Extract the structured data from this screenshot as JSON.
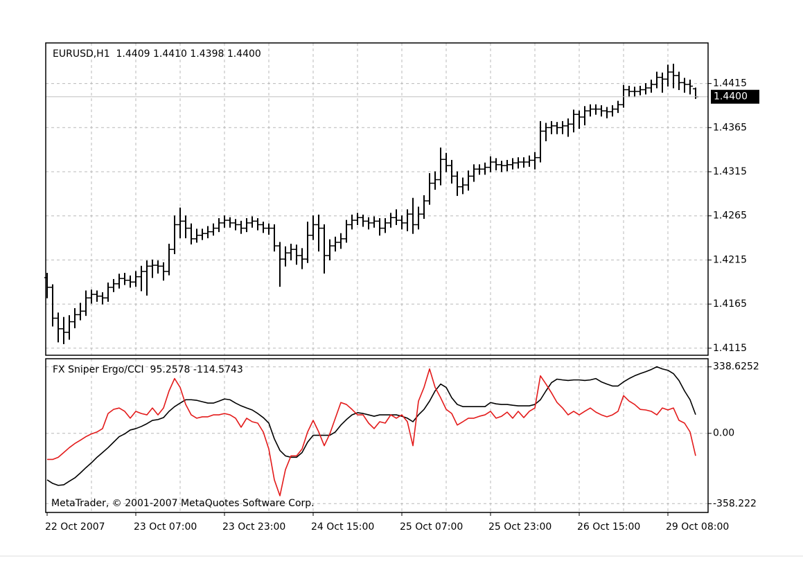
{
  "chart_data": [
    {
      "type": "ohlc",
      "title": "EURUSD,H1  1.4409 1.4410 1.4398 1.4400",
      "open": [
        1.4195,
        1.4184,
        1.4149,
        1.4137,
        1.4133,
        1.4145,
        1.4153,
        1.4157,
        1.4172,
        1.4176,
        1.4174,
        1.4172,
        1.4184,
        1.4188,
        1.4194,
        1.4192,
        1.419,
        1.4196,
        1.4202,
        1.4208,
        1.4209,
        1.4208,
        1.4202,
        1.4227,
        1.4255,
        1.4259,
        1.4251,
        1.4239,
        1.4243,
        1.4245,
        1.4247,
        1.4251,
        1.4257,
        1.426,
        1.4257,
        1.4255,
        1.4251,
        1.4257,
        1.4259,
        1.4255,
        1.4251,
        1.4251,
        1.4231,
        1.4216,
        1.4223,
        1.4227,
        1.422,
        1.4216,
        1.4243,
        1.4255,
        1.4251,
        1.422,
        1.4231,
        1.4235,
        1.4239,
        1.4255,
        1.426,
        1.4263,
        1.4259,
        1.4257,
        1.4259,
        1.4251,
        1.4257,
        1.4263,
        1.426,
        1.4257,
        1.4267,
        1.4255,
        1.4267,
        1.4282,
        1.4302,
        1.4306,
        1.4329,
        1.4322,
        1.431,
        1.4298,
        1.43,
        1.431,
        1.4318,
        1.4318,
        1.432,
        1.4326,
        1.4323,
        1.4322,
        1.4323,
        1.4325,
        1.4326,
        1.4326,
        1.4328,
        1.4331,
        1.4361,
        1.4365,
        1.4367,
        1.4365,
        1.4367,
        1.4369,
        1.438,
        1.4377,
        1.4384,
        1.4386,
        1.4386,
        1.4384,
        1.4383,
        1.4386,
        1.4391,
        1.4408,
        1.4406,
        1.4406,
        1.4408,
        1.441,
        1.4414,
        1.4422,
        1.442,
        1.4428,
        1.4424,
        1.4416,
        1.4414,
        1.4409
      ],
      "high": [
        1.42,
        1.4187,
        1.4155,
        1.415,
        1.4152,
        1.416,
        1.4166,
        1.418,
        1.4181,
        1.418,
        1.4178,
        1.4189,
        1.4193,
        1.4199,
        1.42,
        1.4197,
        1.4202,
        1.4208,
        1.4214,
        1.4215,
        1.4214,
        1.4212,
        1.4233,
        1.4265,
        1.4274,
        1.4265,
        1.4256,
        1.425,
        1.425,
        1.4253,
        1.4256,
        1.4262,
        1.4265,
        1.4263,
        1.4261,
        1.4259,
        1.4262,
        1.4264,
        1.4262,
        1.4258,
        1.4256,
        1.4255,
        1.4235,
        1.423,
        1.4233,
        1.4232,
        1.4228,
        1.4258,
        1.4265,
        1.4266,
        1.4255,
        1.4238,
        1.4241,
        1.4245,
        1.426,
        1.4266,
        1.4268,
        1.4266,
        1.4263,
        1.4264,
        1.4262,
        1.4262,
        1.4268,
        1.4272,
        1.4265,
        1.4272,
        1.4285,
        1.4275,
        1.4288,
        1.4313,
        1.4315,
        1.4342,
        1.4336,
        1.4328,
        1.4315,
        1.4308,
        1.4316,
        1.4323,
        1.4323,
        1.4325,
        1.4332,
        1.433,
        1.4327,
        1.4328,
        1.433,
        1.4331,
        1.4331,
        1.4333,
        1.4337,
        1.4372,
        1.437,
        1.4372,
        1.4371,
        1.4372,
        1.4375,
        1.4385,
        1.4384,
        1.4389,
        1.4391,
        1.4391,
        1.439,
        1.4388,
        1.439,
        1.4395,
        1.4413,
        1.4412,
        1.4411,
        1.4412,
        1.4415,
        1.4419,
        1.4428,
        1.4427,
        1.4436,
        1.4437,
        1.4428,
        1.4421,
        1.4419,
        1.441
      ],
      "low": [
        1.4172,
        1.414,
        1.4122,
        1.412,
        1.4125,
        1.4138,
        1.4147,
        1.4152,
        1.4166,
        1.4168,
        1.4165,
        1.4168,
        1.4179,
        1.4183,
        1.4187,
        1.4184,
        1.4185,
        1.418,
        1.4175,
        1.4195,
        1.42,
        1.4192,
        1.4198,
        1.4222,
        1.424,
        1.424,
        1.4233,
        1.4235,
        1.4238,
        1.424,
        1.4243,
        1.4247,
        1.4252,
        1.4252,
        1.4249,
        1.4245,
        1.4247,
        1.4252,
        1.4249,
        1.4246,
        1.4244,
        1.4225,
        1.4185,
        1.4208,
        1.4215,
        1.421,
        1.4205,
        1.4212,
        1.4238,
        1.4225,
        1.42,
        1.4215,
        1.4225,
        1.4228,
        1.4235,
        1.425,
        1.4255,
        1.4253,
        1.425,
        1.4252,
        1.4243,
        1.4246,
        1.4252,
        1.4255,
        1.425,
        1.4248,
        1.4245,
        1.425,
        1.4262,
        1.4278,
        1.4295,
        1.43,
        1.4315,
        1.4302,
        1.4288,
        1.429,
        1.4294,
        1.4304,
        1.4312,
        1.4312,
        1.4315,
        1.4317,
        1.4315,
        1.4316,
        1.4318,
        1.4319,
        1.432,
        1.4321,
        1.4318,
        1.4326,
        1.435,
        1.4358,
        1.4358,
        1.4358,
        1.4355,
        1.436,
        1.4364,
        1.4368,
        1.4378,
        1.438,
        1.4378,
        1.4376,
        1.4378,
        1.4382,
        1.4388,
        1.44,
        1.44,
        1.4402,
        1.4403,
        1.4405,
        1.441,
        1.4405,
        1.4412,
        1.441,
        1.4408,
        1.4405,
        1.4403,
        1.4398
      ],
      "close": [
        1.4184,
        1.4149,
        1.4137,
        1.4133,
        1.4145,
        1.4153,
        1.4157,
        1.4172,
        1.4176,
        1.4174,
        1.4172,
        1.4184,
        1.4188,
        1.4194,
        1.4192,
        1.419,
        1.4196,
        1.4202,
        1.4208,
        1.4209,
        1.4208,
        1.4202,
        1.4227,
        1.4255,
        1.4259,
        1.4251,
        1.4239,
        1.4243,
        1.4245,
        1.4247,
        1.4251,
        1.4257,
        1.426,
        1.4257,
        1.4255,
        1.4251,
        1.4257,
        1.4259,
        1.4255,
        1.4251,
        1.4251,
        1.4231,
        1.4216,
        1.4223,
        1.4227,
        1.422,
        1.4216,
        1.4243,
        1.4255,
        1.4251,
        1.422,
        1.4231,
        1.4235,
        1.4239,
        1.4255,
        1.426,
        1.4263,
        1.4259,
        1.4257,
        1.4259,
        1.4251,
        1.4257,
        1.4263,
        1.426,
        1.4257,
        1.4267,
        1.4255,
        1.4267,
        1.4282,
        1.4302,
        1.4306,
        1.4329,
        1.4322,
        1.431,
        1.4298,
        1.43,
        1.431,
        1.4318,
        1.4318,
        1.432,
        1.4326,
        1.4323,
        1.4322,
        1.4323,
        1.4325,
        1.4326,
        1.4326,
        1.4328,
        1.4331,
        1.4361,
        1.4365,
        1.4367,
        1.4365,
        1.4367,
        1.4369,
        1.438,
        1.4377,
        1.4384,
        1.4386,
        1.4386,
        1.4384,
        1.4383,
        1.4386,
        1.4391,
        1.4408,
        1.4406,
        1.4406,
        1.4408,
        1.441,
        1.4414,
        1.4422,
        1.442,
        1.4428,
        1.4424,
        1.4416,
        1.4414,
        1.4412,
        1.44
      ],
      "color": "#000000",
      "ylim": [
        1.4107,
        1.4461
      ],
      "yticks": [
        1.4115,
        1.4165,
        1.4215,
        1.4265,
        1.4315,
        1.4365,
        1.4415
      ],
      "grid": true,
      "current_price": {
        "value": 1.44,
        "label": "1.4400"
      }
    },
    {
      "type": "line",
      "title": "FX Sniper Ergo/CCI  95.2578 -114.5743",
      "categories": [
        "22 Oct 2007",
        null,
        null,
        null,
        null,
        null,
        null,
        null,
        null,
        null,
        null,
        null,
        null,
        null,
        null,
        null,
        "23 Oct 07:00",
        null,
        null,
        null,
        null,
        null,
        null,
        null,
        null,
        null,
        null,
        null,
        null,
        null,
        null,
        null,
        "23 Oct 23:00",
        null,
        null,
        null,
        null,
        null,
        null,
        null,
        null,
        null,
        null,
        null,
        null,
        null,
        null,
        null,
        "24 Oct 15:00",
        null,
        null,
        null,
        null,
        null,
        null,
        null,
        null,
        null,
        null,
        null,
        null,
        null,
        null,
        null,
        "25 Oct 07:00",
        null,
        null,
        null,
        null,
        null,
        null,
        null,
        null,
        null,
        null,
        null,
        null,
        null,
        null,
        null,
        "25 Oct 23:00",
        null,
        null,
        null,
        null,
        null,
        null,
        null,
        null,
        null,
        null,
        null,
        null,
        null,
        null,
        null,
        "26 Oct 15:00",
        null,
        null,
        null,
        null,
        null,
        null,
        null,
        null,
        null,
        null,
        null,
        null,
        null,
        null,
        null,
        "29 Oct 08:00",
        null,
        null,
        null,
        null,
        null
      ],
      "series": [
        {
          "color": "#000000",
          "values": [
            -237,
            -255,
            -265,
            -262,
            -244,
            -227,
            -202,
            -175,
            -150,
            -122,
            -98,
            -73,
            -45,
            -17,
            -3,
            17,
            24,
            35,
            49,
            66,
            70,
            80,
            112,
            136,
            154,
            171,
            171,
            168,
            161,
            154,
            154,
            164,
            175,
            171,
            154,
            140,
            129,
            119,
            101,
            80,
            52,
            -28,
            -87,
            -115,
            -122,
            -122,
            -98,
            -45,
            -10,
            -10,
            -10,
            -10,
            7,
            42,
            70,
            94,
            105,
            101,
            94,
            87,
            94,
            94,
            94,
            94,
            87,
            77,
            59,
            94,
            122,
            164,
            216,
            251,
            234,
            181,
            147,
            136,
            136,
            136,
            136,
            136,
            157,
            150,
            147,
            147,
            143,
            140,
            140,
            140,
            147,
            171,
            216,
            258,
            276,
            272,
            269,
            272,
            272,
            269,
            272,
            279,
            262,
            251,
            241,
            241,
            262,
            279,
            293,
            304,
            314,
            325,
            339,
            328,
            321,
            304,
            269,
            216,
            171,
            95.2578
          ]
        },
        {
          "color": "#e31a1a",
          "values": [
            -133,
            -133,
            -122,
            -98,
            -73,
            -52,
            -35,
            -17,
            -3,
            7,
            24,
            101,
            122,
            129,
            112,
            77,
            112,
            101,
            94,
            129,
            94,
            129,
            216,
            279,
            234,
            147,
            94,
            77,
            84,
            84,
            94,
            94,
            101,
            94,
            77,
            31,
            77,
            59,
            52,
            7,
            -80,
            -237,
            -318,
            -185,
            -115,
            -115,
            -80,
            7,
            66,
            7,
            -63,
            -3,
            77,
            157,
            147,
            122,
            94,
            94,
            52,
            24,
            59,
            52,
            94,
            77,
            94,
            59,
            -63,
            164,
            234,
            328,
            234,
            181,
            122,
            101,
            42,
            59,
            77,
            77,
            87,
            94,
            112,
            77,
            87,
            108,
            77,
            112,
            80,
            112,
            129,
            293,
            251,
            206,
            157,
            129,
            94,
            112,
            94,
            112,
            129,
            108,
            94,
            84,
            94,
            112,
            192,
            164,
            147,
            122,
            119,
            112,
            94,
            129,
            119,
            129,
            66,
            52,
            7,
            -114.5743
          ]
        }
      ],
      "ylim": [
        -403,
        380
      ],
      "yticks": [
        338.6252,
        {
          "value": 0,
          "label": "0.00"
        },
        -358.222
      ],
      "grid": true,
      "footer": "MetaTrader, © 2001-2007 MetaQuotes Software Corp."
    }
  ]
}
